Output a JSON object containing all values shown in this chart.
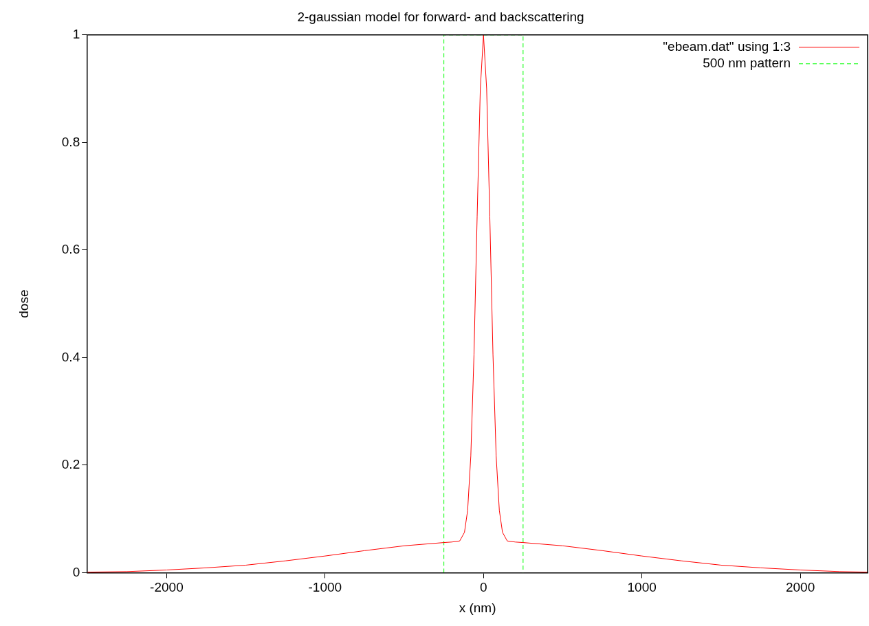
{
  "chart_data": {
    "type": "line",
    "title": "2-gaussian model for forward- and backscattering",
    "xlabel": "x (nm)",
    "ylabel": "dose",
    "xlim": [
      -2500,
      2425
    ],
    "xticks": [
      -2000,
      -1000,
      0,
      1000,
      2000
    ],
    "ylim": [
      0,
      1
    ],
    "yticks": [
      0,
      0.2,
      0.4,
      0.6,
      0.8,
      1
    ],
    "grid": false,
    "legend": "top right",
    "marker": "none",
    "series": [
      {
        "name": "\"ebeam.dat\" using 1:3",
        "color": "#ff0000",
        "line_style": "solid",
        "x": [
          -2500,
          -2250,
          -2000,
          -1750,
          -1500,
          -1250,
          -1000,
          -750,
          -500,
          -250,
          -200,
          -150,
          -120,
          -100,
          -80,
          -60,
          -40,
          -20,
          0,
          20,
          40,
          60,
          80,
          100,
          120,
          150,
          200,
          250,
          500,
          750,
          1000,
          1250,
          1500,
          1750,
          2000,
          2250,
          2425
        ],
        "values": [
          0.001,
          0.002,
          0.005,
          0.009,
          0.014,
          0.022,
          0.031,
          0.041,
          0.05,
          0.056,
          0.057,
          0.059,
          0.075,
          0.116,
          0.217,
          0.405,
          0.662,
          0.9,
          1,
          0.9,
          0.662,
          0.405,
          0.217,
          0.116,
          0.075,
          0.059,
          0.057,
          0.056,
          0.05,
          0.041,
          0.031,
          0.022,
          0.014,
          0.009,
          0.005,
          0.002,
          0.001
        ]
      },
      {
        "name": "500 nm pattern",
        "color": "#00ff00",
        "line_style": "dashed",
        "x": [
          -250,
          -250,
          250,
          250
        ],
        "values": [
          0,
          1,
          1,
          0
        ]
      }
    ]
  }
}
